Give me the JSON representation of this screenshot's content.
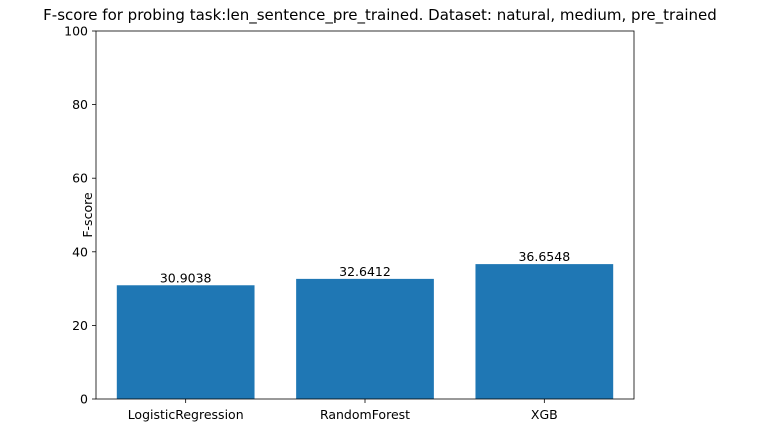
{
  "chart_data": {
    "type": "bar",
    "title": "F-score for probing task:len_sentence_pre_trained. Dataset: natural, medium, pre_trained",
    "xlabel": "",
    "ylabel": "F-score",
    "categories": [
      "LogisticRegression",
      "RandomForest",
      "XGB"
    ],
    "values": [
      30.9038,
      32.6412,
      36.6548
    ],
    "data_labels": [
      "30.9038",
      "32.6412",
      "36.6548"
    ],
    "ylim": [
      0,
      100
    ],
    "yticks": [
      0,
      20,
      40,
      60,
      80,
      100
    ],
    "ytick_labels": [
      "0",
      "20",
      "40",
      "60",
      "80",
      "100"
    ],
    "grid": false,
    "bar_color": "#1f77b4"
  }
}
